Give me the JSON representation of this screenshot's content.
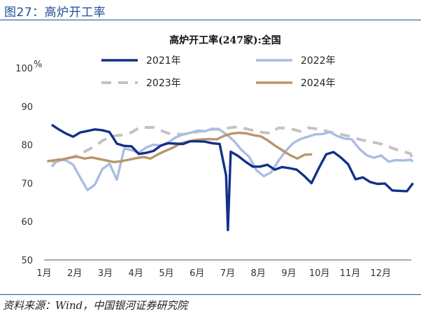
{
  "figure_label": "图27：高炉开工率",
  "source_note": "资料来源：Wind，中国银河证券研究院",
  "colors": {
    "s2021": "#13308a",
    "s2022": "#a9bde3",
    "s2023": "#c3c3c3",
    "s2024": "#b8966a",
    "rule": "#1f4e96"
  },
  "chart_data": {
    "type": "line",
    "title": "高炉开工率(247家):全国",
    "unit_label": "%",
    "ylim": [
      50,
      100
    ],
    "yticks": [
      50,
      60,
      70,
      80,
      90,
      100
    ],
    "x_range": [
      1,
      13
    ],
    "month_labels": [
      "1月",
      "2月",
      "3月",
      "4月",
      "5月",
      "6月",
      "7月",
      "8月",
      "9月",
      "10月",
      "11月",
      "12月"
    ],
    "grid": false,
    "legend_position": "top",
    "series": [
      {
        "name": "2021年",
        "style": "solid",
        "color": "#13308a",
        "x": [
          1.25,
          1.48,
          1.72,
          1.95,
          2.18,
          2.42,
          2.66,
          2.9,
          3.14,
          3.38,
          3.62,
          3.86,
          4.1,
          4.34,
          4.58,
          4.82,
          5.06,
          5.3,
          5.54,
          5.78,
          6.02,
          6.26,
          6.5,
          6.74,
          6.95,
          7.01,
          7.1,
          7.34,
          7.58,
          7.82,
          8.06,
          8.3,
          8.54,
          8.78,
          9.02,
          9.26,
          9.5,
          9.74,
          9.98,
          10.22,
          10.46,
          10.7,
          10.94,
          11.18,
          11.42,
          11.66,
          11.9,
          12.14,
          12.38,
          12.62,
          12.86,
          13.06
        ],
        "y": [
          85.2,
          84.0,
          82.9,
          82.1,
          83.2,
          83.6,
          84.0,
          83.8,
          83.3,
          80.3,
          79.7,
          79.6,
          77.6,
          77.9,
          78.4,
          79.8,
          80.4,
          80.3,
          80.2,
          80.9,
          80.9,
          80.8,
          80.4,
          80.2,
          72.0,
          57.8,
          78.2,
          77.1,
          75.6,
          74.3,
          74.3,
          74.8,
          73.5,
          74.2,
          73.9,
          73.5,
          71.9,
          70.0,
          73.9,
          77.5,
          78.1,
          76.7,
          74.9,
          71.0,
          71.5,
          70.3,
          69.8,
          69.9,
          68.1,
          68.0,
          67.9,
          70.0
        ]
      },
      {
        "name": "2022年",
        "style": "solid",
        "color": "#a9bde3",
        "x": [
          1.25,
          1.48,
          1.72,
          1.95,
          2.18,
          2.42,
          2.66,
          2.9,
          3.14,
          3.38,
          3.62,
          3.86,
          4.1,
          4.34,
          4.58,
          4.82,
          5.06,
          5.3,
          5.54,
          5.78,
          6.02,
          6.26,
          6.5,
          6.74,
          6.98,
          7.22,
          7.46,
          7.7,
          7.94,
          8.18,
          8.42,
          8.66,
          8.9,
          9.14,
          9.38,
          9.62,
          9.86,
          10.1,
          10.34,
          10.58,
          10.82,
          11.06,
          11.3,
          11.54,
          11.78,
          12.02,
          12.26,
          12.5,
          12.74,
          12.98,
          13.06
        ],
        "y": [
          74.3,
          76.2,
          75.9,
          74.8,
          71.5,
          68.2,
          69.6,
          73.6,
          75.1,
          70.9,
          79.0,
          78.6,
          77.9,
          79.3,
          80.0,
          79.8,
          80.6,
          81.9,
          82.7,
          83.1,
          83.7,
          83.5,
          84.2,
          83.9,
          82.6,
          80.9,
          78.6,
          76.9,
          73.4,
          71.8,
          72.8,
          75.8,
          78.4,
          80.4,
          81.5,
          82.1,
          82.7,
          82.8,
          83.3,
          82.3,
          81.6,
          81.4,
          79.0,
          77.3,
          76.6,
          77.2,
          75.6,
          76.0,
          75.9,
          76.1,
          75.6
        ]
      },
      {
        "name": "2023年",
        "style": "dashed",
        "color": "#c3c3c3",
        "x": [
          1.25,
          1.48,
          1.72,
          1.95,
          2.18,
          2.42,
          2.66,
          2.9,
          3.14,
          3.38,
          3.62,
          3.86,
          4.1,
          4.34,
          4.58,
          4.82,
          5.06,
          5.3,
          5.54,
          5.78,
          6.02,
          6.26,
          6.5,
          6.74,
          6.98,
          7.22,
          7.46,
          7.7,
          7.94,
          8.18,
          8.42,
          8.66,
          8.9,
          9.14,
          9.38,
          9.62,
          9.86,
          10.1,
          10.34,
          10.58,
          10.82,
          11.06,
          11.3,
          11.54,
          11.78,
          12.02,
          12.26,
          12.5,
          12.74,
          12.98,
          13.06
        ],
        "y": [
          75.6,
          75.8,
          76.4,
          76.8,
          77.6,
          78.6,
          79.6,
          81.0,
          82.0,
          82.4,
          82.6,
          83.2,
          84.4,
          84.5,
          84.5,
          83.7,
          83.0,
          82.8,
          82.7,
          83.0,
          83.4,
          83.7,
          84.0,
          84.1,
          84.3,
          84.6,
          84.4,
          84.0,
          83.5,
          83.2,
          83.0,
          84.4,
          84.3,
          84.0,
          83.5,
          84.4,
          84.2,
          83.9,
          83.3,
          83.0,
          82.5,
          82.1,
          81.4,
          81.0,
          80.6,
          80.2,
          79.5,
          78.8,
          78.2,
          77.7,
          75.6
        ]
      },
      {
        "name": "2024年",
        "style": "solid",
        "color": "#b8966a",
        "x": [
          1.1,
          1.36,
          1.6,
          1.84,
          2.08,
          2.32,
          2.56,
          2.8,
          3.04,
          3.28,
          3.52,
          3.76,
          4.0,
          4.24,
          4.48,
          4.72,
          4.96,
          5.2,
          5.44,
          5.68,
          5.92,
          6.16,
          6.4,
          6.64,
          6.88,
          7.12,
          7.36,
          7.6,
          7.84,
          8.08,
          8.32,
          8.56,
          8.8,
          9.04,
          9.28,
          9.52,
          9.76
        ],
        "y": [
          75.7,
          76.0,
          76.2,
          76.6,
          76.9,
          76.4,
          76.7,
          76.3,
          75.9,
          75.5,
          75.7,
          76.1,
          76.5,
          76.8,
          76.4,
          77.5,
          78.4,
          79.2,
          80.3,
          80.8,
          81.2,
          81.4,
          81.5,
          81.4,
          82.3,
          82.9,
          83.1,
          83.0,
          82.5,
          82.2,
          81.1,
          79.7,
          78.5,
          77.3,
          76.4,
          77.4,
          77.5
        ]
      }
    ]
  }
}
